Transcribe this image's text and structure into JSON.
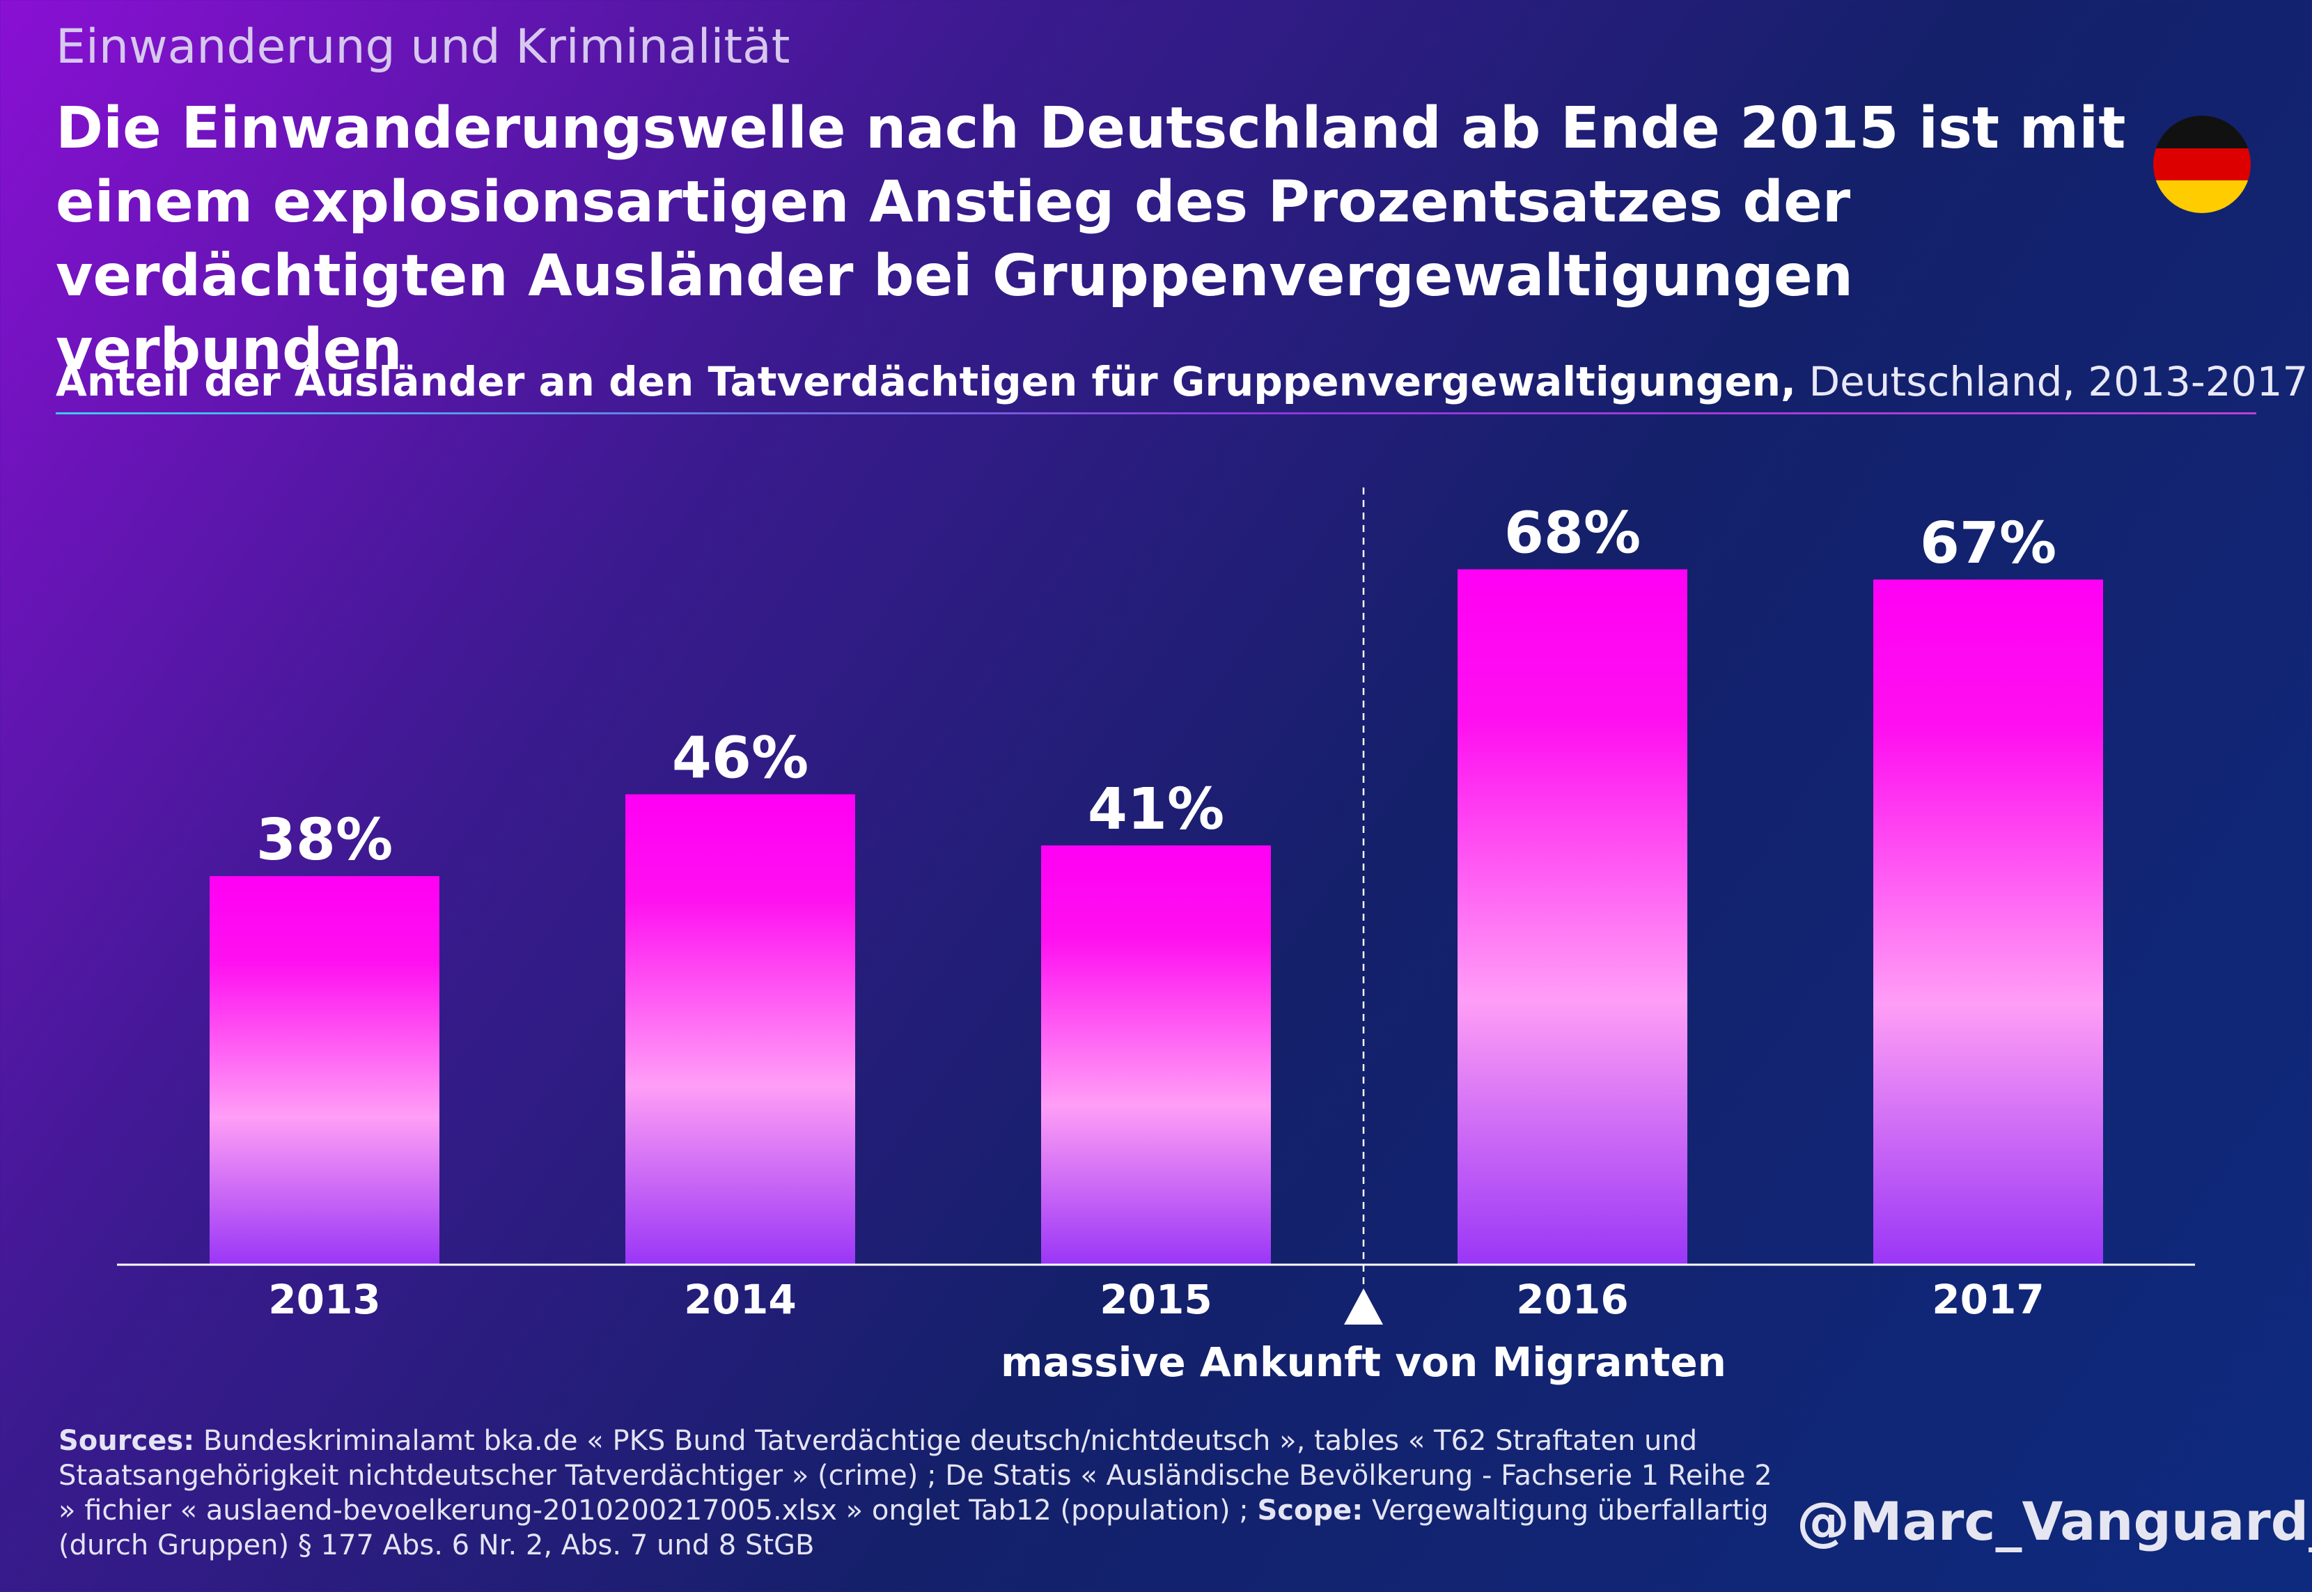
{
  "header": {
    "kicker": "Einwanderung und Kriminalität",
    "headline": "Die Einwanderungswelle nach Deutschland ab Ende 2015 ist mit einem explosionsartigen Anstieg des Prozentsatzes der verdächtigten Ausländer bei Gruppenvergewaltigungen verbunden",
    "subtitle_bold": "Anteil der Ausländer an den Tatverdächtigen für Gruppenvergewaltigungen,",
    "subtitle_light": " Deutschland, 2013-2017"
  },
  "flag": {
    "colors": [
      "#111111",
      "#dd0000",
      "#ffcc00"
    ]
  },
  "chart_data": {
    "type": "bar",
    "title": "Anteil der Ausländer an den Tatverdächtigen für Gruppenvergewaltigungen, Deutschland, 2013-2017",
    "categories": [
      "2013",
      "2014",
      "2015",
      "2016",
      "2017"
    ],
    "values": [
      38,
      46,
      41,
      68,
      67
    ],
    "value_labels": [
      "38%",
      "46%",
      "41%",
      "68%",
      "67%"
    ],
    "unit": "%",
    "ylim": [
      0,
      76
    ],
    "grid": false,
    "annotation": {
      "text": "massive Ankunft von Migranten",
      "position": "between 2015 and 2016",
      "style": "dashed vertical line with upward triangle marker"
    },
    "colors": {
      "bar_top": "#ff00f4",
      "bar_mid": "#ff9ef6",
      "bar_bottom": "#9a36f6",
      "axis": "#ffffff"
    }
  },
  "footer": {
    "sources_label": "Sources:",
    "sources_text": " Bundeskriminalamt bka.de « PKS Bund Tatverdächtige deutsch/nichtdeutsch », tables « T62 Straftaten und Staatsangehörigkeit nichtdeutscher Tatverdächtiger » (crime) ; De Statis « Ausländische Bevölkerung - Fachserie 1 Reihe 2 » fichier « auslaend-bevoelkerung-2010200217005.xlsx » onglet Tab12 (population) ; ",
    "scope_label": "Scope:",
    "scope_text": " Vergewaltigung überfallartig (durch Gruppen) § 177 Abs. 6 Nr. 2, Abs. 7 und 8 StGB",
    "handle": "@Marc_Vanguard_i"
  }
}
